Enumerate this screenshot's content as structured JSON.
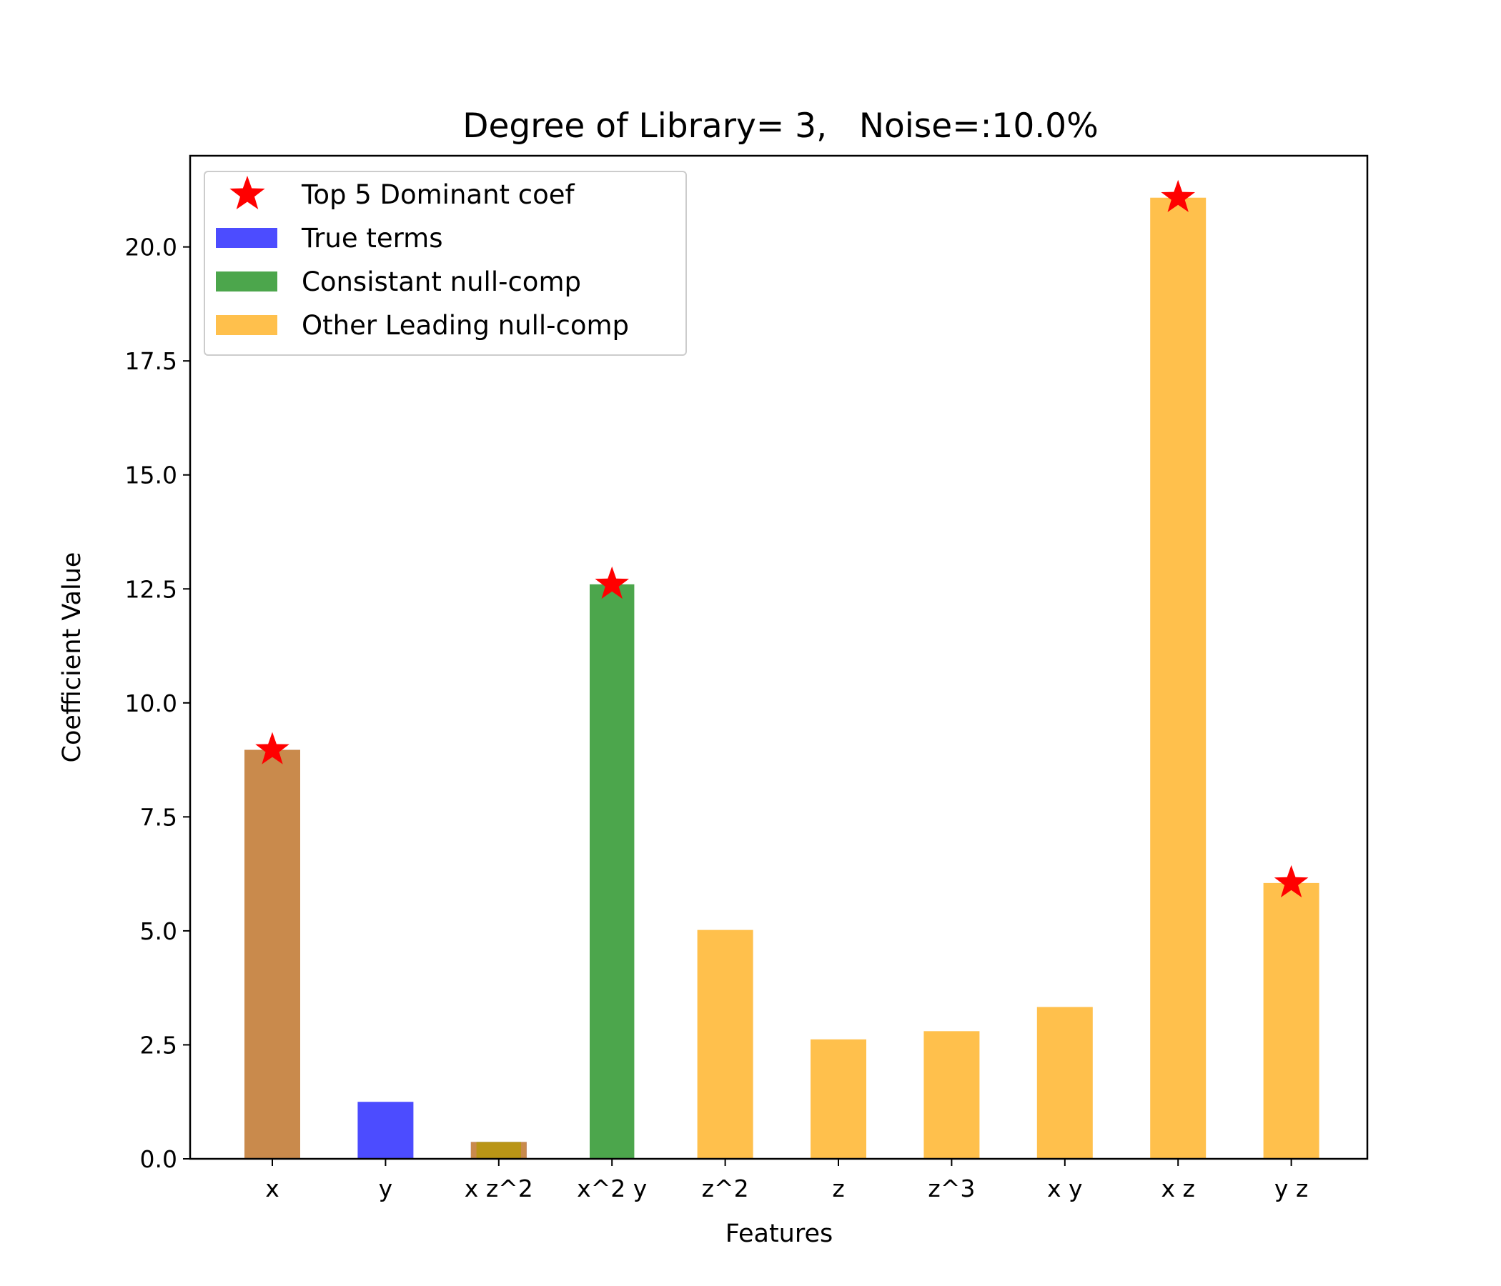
{
  "chart_data": {
    "type": "bar",
    "title": "Degree of Library= 3,   Noise=:10.0%",
    "xlabel": "Features",
    "ylabel": "Coefficient Value",
    "categories": [
      "x",
      "y",
      "x z^2",
      "x^2 y",
      "z^2",
      "z",
      "z^3",
      "x y",
      "x z",
      "y z"
    ],
    "ylim": [
      0,
      22
    ],
    "yticks": [
      "0.0",
      "2.5",
      "5.0",
      "7.5",
      "10.0",
      "12.5",
      "15.0",
      "17.5",
      "20.0"
    ],
    "grid": false,
    "legend_position": "top-left",
    "series": [
      {
        "name": "True terms",
        "color": "#0000ff",
        "alpha": 0.7,
        "values": [
          8.97,
          1.25,
          0.37,
          null,
          null,
          null,
          null,
          null,
          null,
          null
        ]
      },
      {
        "name": "Consistant null-comp",
        "color": "#008000",
        "alpha": 0.7,
        "values": [
          null,
          null,
          0.37,
          12.6,
          null,
          null,
          null,
          null,
          null,
          null
        ]
      },
      {
        "name": "Other Leading null-comp",
        "color": "#ffa500",
        "alpha": 0.7,
        "values": [
          8.97,
          null,
          0.37,
          null,
          5.02,
          2.62,
          2.8,
          3.33,
          21.08,
          6.05
        ]
      }
    ],
    "markers": {
      "name": "Top 5 Dominant coef",
      "color": "#ff0000",
      "shape": "star",
      "points": [
        {
          "category": "x",
          "value": 8.97
        },
        {
          "category": "x^2 y",
          "value": 12.6
        },
        {
          "category": "x z",
          "value": 21.08
        },
        {
          "category": "y z",
          "value": 6.05
        }
      ]
    }
  }
}
